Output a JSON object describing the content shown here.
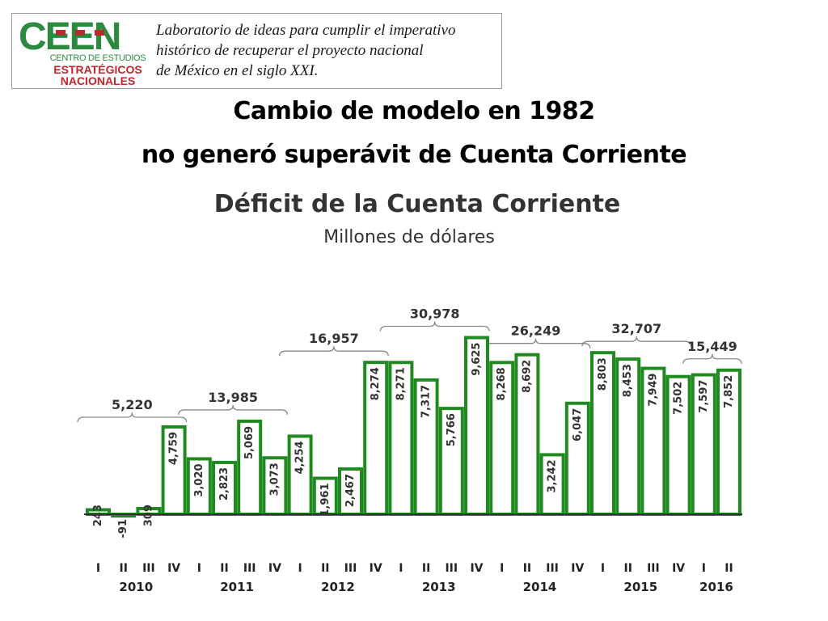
{
  "logo": {
    "brand": "CEEN",
    "sub_line1": "CENTRO DE ESTUDIOS",
    "sub_line2": "ESTRATÉGICOS",
    "sub_line3": "NACIONALES",
    "tagline": [
      "Laboratorio de ideas para cumplir el imperativo",
      "histórico de recuperar el proyecto nacional",
      "de México en el siglo XXI."
    ],
    "colors": {
      "green": "#2b8a3e",
      "red": "#c0262d"
    }
  },
  "heading": {
    "line1": "Cambio de modelo en 1982",
    "line2": "no generó superávit de Cuenta Corriente"
  },
  "chart_data": {
    "type": "bar",
    "title": "Déficit de la Cuenta Corriente",
    "subtitle": "Millones de dólares",
    "categories": [
      "I",
      "II",
      "III",
      "IV",
      "I",
      "II",
      "III",
      "IV",
      "I",
      "II",
      "III",
      "IV",
      "I",
      "II",
      "III",
      "IV",
      "I",
      "II",
      "III",
      "IV",
      "I",
      "II",
      "III",
      "IV",
      "I",
      "II"
    ],
    "values": [
      243,
      -91,
      309,
      4759,
      3020,
      2823,
      5069,
      3073,
      4254,
      1961,
      2467,
      8274,
      8271,
      7317,
      5766,
      9625,
      8268,
      8692,
      3242,
      6047,
      8803,
      8453,
      7949,
      7502,
      7597,
      7852
    ],
    "labels": [
      "243",
      "-91",
      "309",
      "4,759",
      "3,020",
      "2,823",
      "5,069",
      "3,073",
      "4,254",
      "1,961",
      "2,467",
      "8,274",
      "8,271",
      "7,317",
      "5,766",
      "9,625",
      "8,268",
      "8,692",
      "3,242",
      "6,047",
      "8,803",
      "8,453",
      "7,949",
      "7,502",
      "7,597",
      "7,852"
    ],
    "years": [
      {
        "label": "2010",
        "start": 0,
        "end": 3
      },
      {
        "label": "2011",
        "start": 4,
        "end": 7
      },
      {
        "label": "2012",
        "start": 8,
        "end": 11
      },
      {
        "label": "2013",
        "start": 12,
        "end": 15
      },
      {
        "label": "2014",
        "start": 16,
        "end": 19
      },
      {
        "label": "2015",
        "start": 20,
        "end": 23
      },
      {
        "label": "2016",
        "start": 24,
        "end": 25
      }
    ],
    "annual_totals": [
      {
        "label": "5,220",
        "start": 0,
        "end": 3
      },
      {
        "label": "13,985",
        "start": 4,
        "end": 7
      },
      {
        "label": "16,957",
        "start": 8,
        "end": 11
      },
      {
        "label": "30,978",
        "start": 12,
        "end": 15
      },
      {
        "label": "26,249",
        "start": 16,
        "end": 19
      },
      {
        "label": "32,707",
        "start": 20,
        "end": 23
      },
      {
        "label": "15,449",
        "start": 24,
        "end": 25
      }
    ],
    "ylim": [
      -500,
      10000
    ],
    "grid": false,
    "legend": "none",
    "colors": {
      "bar": "#1f8a1f",
      "bar_fill": "#ffffff",
      "text": "#333333",
      "bracket": "#888888"
    }
  }
}
